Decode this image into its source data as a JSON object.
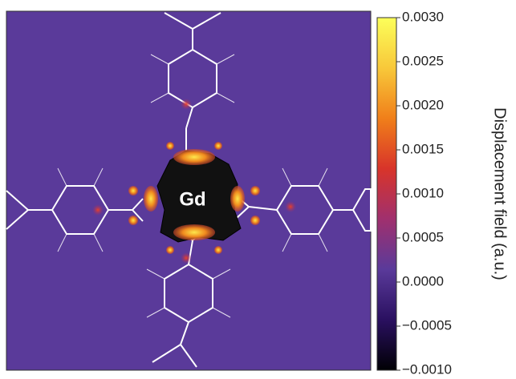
{
  "chart_data": {
    "type": "heatmap",
    "annotation": "Gd",
    "colorbar_label": "Displacement field (a.u.)",
    "clim": [
      -0.001,
      0.003
    ],
    "cticks": [
      {
        "value": 0.003,
        "label": "0.0030"
      },
      {
        "value": 0.0025,
        "label": "0.0025"
      },
      {
        "value": 0.002,
        "label": "0.0020"
      },
      {
        "value": 0.0015,
        "label": "0.0015"
      },
      {
        "value": 0.001,
        "label": "0.0010"
      },
      {
        "value": 0.0005,
        "label": "0.0005"
      },
      {
        "value": 0,
        "label": "0.0000"
      },
      {
        "value": -0.0005,
        "label": "−0.0005"
      },
      {
        "value": -0.001,
        "label": "−0.0010"
      }
    ],
    "colormap": [
      "#000004",
      "#2a1060",
      "#5a3a9a",
      "#a0306e",
      "#d8342a",
      "#f07f1a",
      "#f8c83a",
      "#fcff5a"
    ]
  }
}
